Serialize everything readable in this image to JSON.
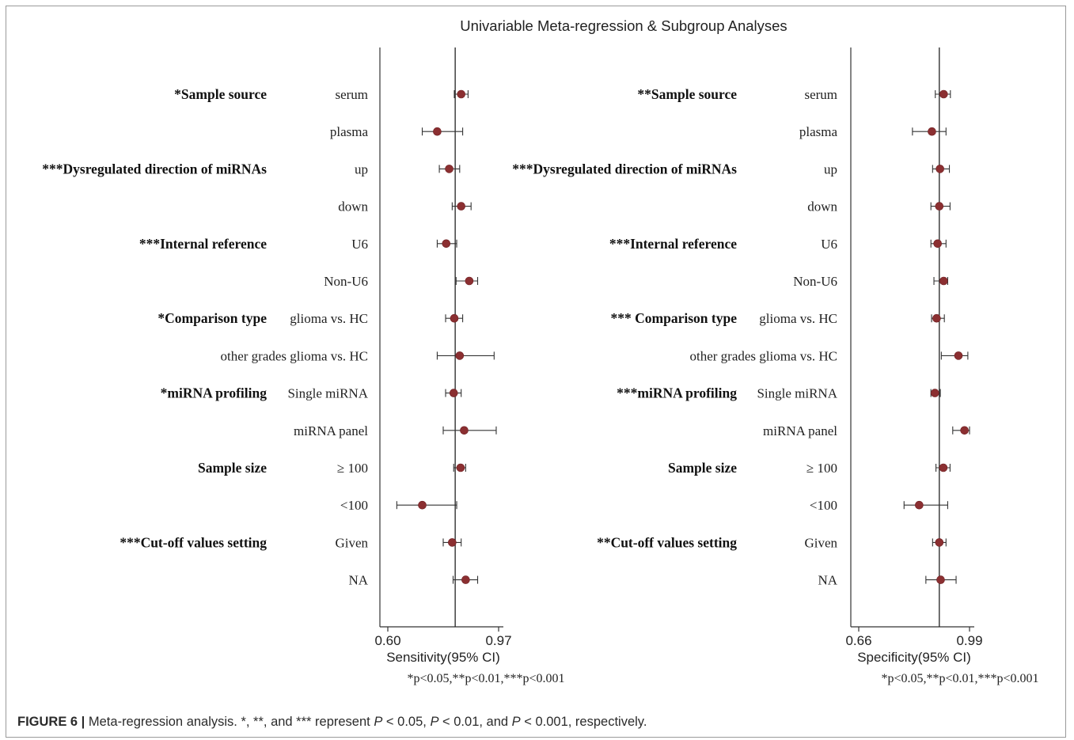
{
  "title": "Univariable Meta-regression & Subgroup Analyses",
  "footnote": "*p<0.05,**p<0.01,***p<0.001",
  "caption": {
    "label": "FIGURE 6 |",
    "text": "Meta-regression analysis. *, **, and *** represent P < 0.05, P < 0.01, and P < 0.001, respectively."
  },
  "chart_data": [
    {
      "type": "forest",
      "xlabel": "Sensitivity(95% CI)",
      "xlim": [
        0.6,
        0.97
      ],
      "xticks": [
        "0.60",
        "0.97"
      ],
      "reference_line": 0.825,
      "groups": [
        {
          "label": "*Sample source",
          "rows": [
            {
              "sub": "serum",
              "est": 0.845,
              "lo": 0.822,
              "hi": 0.868
            },
            {
              "sub": "plasma",
              "est": 0.765,
              "lo": 0.715,
              "hi": 0.85
            }
          ]
        },
        {
          "label": "***Dysregulated  direction of miRNAs",
          "rows": [
            {
              "sub": "up",
              "est": 0.805,
              "lo": 0.772,
              "hi": 0.84
            },
            {
              "sub": "down",
              "est": 0.845,
              "lo": 0.815,
              "hi": 0.878
            }
          ]
        },
        {
          "label": "***Internal reference",
          "rows": [
            {
              "sub": "U6",
              "est": 0.795,
              "lo": 0.765,
              "hi": 0.83
            },
            {
              "sub": "Non-U6",
              "est": 0.872,
              "lo": 0.828,
              "hi": 0.9
            }
          ]
        },
        {
          "label": "*Comparison type",
          "rows": [
            {
              "sub": "glioma vs. HC",
              "est": 0.822,
              "lo": 0.793,
              "hi": 0.85
            },
            {
              "sub": "other grades glioma vs. HC",
              "est": 0.84,
              "lo": 0.765,
              "hi": 0.955
            }
          ]
        },
        {
          "label": "*miRNA profiling",
          "rows": [
            {
              "sub": "Single miRNA",
              "est": 0.82,
              "lo": 0.793,
              "hi": 0.845
            },
            {
              "sub": "miRNA panel",
              "est": 0.855,
              "lo": 0.785,
              "hi": 0.962
            }
          ]
        },
        {
          "label": "Sample size",
          "rows": [
            {
              "sub": "≥ 100",
              "est": 0.843,
              "lo": 0.82,
              "hi": 0.86
            },
            {
              "sub": "<100",
              "est": 0.715,
              "lo": 0.63,
              "hi": 0.83
            }
          ]
        },
        {
          "label": "***Cut-off values setting",
          "rows": [
            {
              "sub": "Given",
              "est": 0.815,
              "lo": 0.785,
              "hi": 0.845
            },
            {
              "sub": "NA",
              "est": 0.86,
              "lo": 0.818,
              "hi": 0.9
            }
          ]
        }
      ]
    },
    {
      "type": "forest",
      "xlabel": "Specificity(95% CI)",
      "xlim": [
        0.66,
        0.99
      ],
      "xticks": [
        "0.66",
        "0.99"
      ],
      "reference_line": 0.9,
      "groups": [
        {
          "label": "**Sample source",
          "rows": [
            {
              "sub": "serum",
              "est": 0.913,
              "lo": 0.888,
              "hi": 0.933
            },
            {
              "sub": "plasma",
              "est": 0.878,
              "lo": 0.82,
              "hi": 0.92
            }
          ]
        },
        {
          "label": "***Dysregulated  direction of miRNAs",
          "rows": [
            {
              "sub": "up",
              "est": 0.902,
              "lo": 0.88,
              "hi": 0.93
            },
            {
              "sub": "down",
              "est": 0.9,
              "lo": 0.875,
              "hi": 0.932
            }
          ]
        },
        {
          "label": "***Internal reference",
          "rows": [
            {
              "sub": "U6",
              "est": 0.895,
              "lo": 0.875,
              "hi": 0.92
            },
            {
              "sub": "Non-U6",
              "est": 0.913,
              "lo": 0.884,
              "hi": 0.925
            }
          ]
        },
        {
          "label": "*** Comparison type",
          "rows": [
            {
              "sub": "glioma vs. HC",
              "est": 0.892,
              "lo": 0.877,
              "hi": 0.915
            },
            {
              "sub": "other grades glioma vs. HC",
              "est": 0.957,
              "lo": 0.906,
              "hi": 0.985
            }
          ]
        },
        {
          "label": "***miRNA profiling",
          "rows": [
            {
              "sub": "Single miRNA",
              "est": 0.887,
              "lo": 0.875,
              "hi": 0.903
            },
            {
              "sub": "miRNA panel",
              "est": 0.975,
              "lo": 0.94,
              "hi": 0.99
            }
          ]
        },
        {
          "label": "Sample size",
          "rows": [
            {
              "sub": "≥ 100",
              "est": 0.912,
              "lo": 0.89,
              "hi": 0.932
            },
            {
              "sub": "<100",
              "est": 0.84,
              "lo": 0.795,
              "hi": 0.925
            }
          ]
        },
        {
          "label": "**Cut-off values setting",
          "rows": [
            {
              "sub": "Given",
              "est": 0.9,
              "lo": 0.88,
              "hi": 0.92
            },
            {
              "sub": "NA",
              "est": 0.904,
              "lo": 0.86,
              "hi": 0.95
            }
          ]
        }
      ]
    }
  ]
}
